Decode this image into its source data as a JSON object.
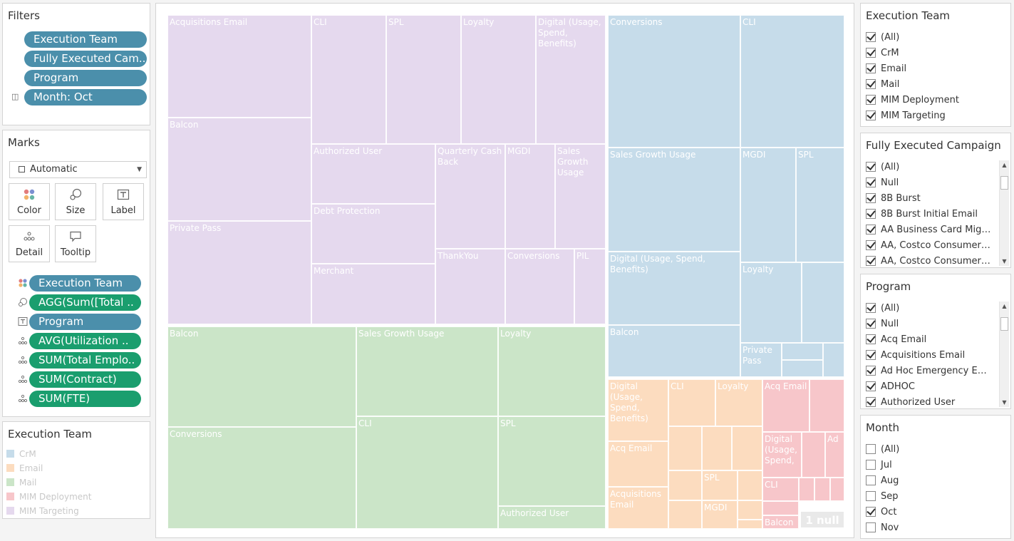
{
  "colors": {
    "crm": "#c6dcea",
    "email": "#fcdcbf",
    "mail": "#cbe5c8",
    "mim_deployment": "#f7c6ca",
    "mim_targeting": "#e5d9ee",
    "pill_blue": "#4b8fab",
    "pill_green": "#1a9e6e"
  },
  "filters": {
    "title": "Filters",
    "pills": [
      "Execution Team",
      "Fully Executed Cam..",
      "Program",
      "Month: Oct"
    ]
  },
  "marks": {
    "title": "Marks",
    "mark_type": "Automatic",
    "buttons": [
      {
        "label": "Color",
        "icon": "color-dots-icon"
      },
      {
        "label": "Size",
        "icon": "size-icon"
      },
      {
        "label": "Label",
        "icon": "label-icon"
      },
      {
        "label": "Detail",
        "icon": "detail-icon"
      },
      {
        "label": "Tooltip",
        "icon": "tooltip-icon"
      }
    ],
    "fields": [
      {
        "label": "Execution Team",
        "icon": "color-dots-icon",
        "kind": "dimension"
      },
      {
        "label": "AGG(Sum([Total ..",
        "icon": "size-icon",
        "kind": "measure"
      },
      {
        "label": "Program",
        "icon": "label-icon",
        "kind": "dimension"
      },
      {
        "label": "AVG(Utilization ..",
        "icon": "detail-icon",
        "kind": "measure"
      },
      {
        "label": "SUM(Total Emplo..",
        "icon": "detail-icon",
        "kind": "measure"
      },
      {
        "label": "SUM(Contract)",
        "icon": "detail-icon",
        "kind": "measure"
      },
      {
        "label": "SUM(FTE)",
        "icon": "detail-icon",
        "kind": "measure"
      }
    ]
  },
  "legend": {
    "title": "Execution Team",
    "items": [
      "CrM",
      "Email",
      "Mail",
      "MIM Deployment",
      "MIM Targeting"
    ]
  },
  "qf_execution_team": {
    "title": "Execution Team",
    "items": [
      {
        "label": "(All)",
        "checked": true
      },
      {
        "label": "CrM",
        "checked": true
      },
      {
        "label": "Email",
        "checked": true
      },
      {
        "label": "Mail",
        "checked": true
      },
      {
        "label": "MIM Deployment",
        "checked": true
      },
      {
        "label": "MIM Targeting",
        "checked": true
      }
    ]
  },
  "qf_campaign": {
    "title": "Fully Executed Campaign",
    "items": [
      {
        "label": "(All)",
        "checked": true
      },
      {
        "label": "Null",
        "checked": true
      },
      {
        "label": "8B Burst",
        "checked": true
      },
      {
        "label": "8B Burst Initial Email",
        "checked": true
      },
      {
        "label": "AA Business Card Migra...",
        "checked": true
      },
      {
        "label": "AA, Costco Consumer, ...",
        "checked": true
      },
      {
        "label": "AA, Costco Consumer, ...",
        "checked": true
      }
    ]
  },
  "qf_program": {
    "title": "Program",
    "items": [
      {
        "label": "(All)",
        "checked": true
      },
      {
        "label": "Null",
        "checked": true
      },
      {
        "label": "Acq Email",
        "checked": true
      },
      {
        "label": "Acquisitions Email",
        "checked": true
      },
      {
        "label": "Ad Hoc Emergency Emails",
        "checked": true
      },
      {
        "label": "ADHOC",
        "checked": true
      },
      {
        "label": "Authorized User",
        "checked": true
      }
    ]
  },
  "qf_month": {
    "title": "Month",
    "items": [
      {
        "label": "(All)",
        "checked": false
      },
      {
        "label": "Jul",
        "checked": false
      },
      {
        "label": "Aug",
        "checked": false
      },
      {
        "label": "Sep",
        "checked": false
      },
      {
        "label": "Oct",
        "checked": true
      },
      {
        "label": "Nov",
        "checked": false
      }
    ]
  },
  "treemap": {
    "null_badge": "1 null",
    "cells": [
      {
        "team": "mim_targeting",
        "label": "Acquisitions Email"
      },
      {
        "team": "mim_targeting",
        "label": "Balcon"
      },
      {
        "team": "mim_targeting",
        "label": "Private Pass"
      },
      {
        "team": "mim_targeting",
        "label": "CLI"
      },
      {
        "team": "mim_targeting",
        "label": "SPL"
      },
      {
        "team": "mim_targeting",
        "label": "Loyalty"
      },
      {
        "team": "mim_targeting",
        "label": "Digital (Usage, Spend, Benefits)"
      },
      {
        "team": "mim_targeting",
        "label": "Authorized User"
      },
      {
        "team": "mim_targeting",
        "label": "Debt Protection"
      },
      {
        "team": "mim_targeting",
        "label": "Merchant"
      },
      {
        "team": "mim_targeting",
        "label": "Quarterly Cash Back"
      },
      {
        "team": "mim_targeting",
        "label": "MGDI"
      },
      {
        "team": "mim_targeting",
        "label": "Sales Growth Usage"
      },
      {
        "team": "mim_targeting",
        "label": "ThankYou"
      },
      {
        "team": "mim_targeting",
        "label": "Conversions"
      },
      {
        "team": "mim_targeting",
        "label": "PIL"
      },
      {
        "team": "mail",
        "label": "Balcon"
      },
      {
        "team": "mail",
        "label": "Sales Growth Usage"
      },
      {
        "team": "mail",
        "label": "Loyalty"
      },
      {
        "team": "mail",
        "label": "Conversions"
      },
      {
        "team": "mail",
        "label": "CLI"
      },
      {
        "team": "mail",
        "label": "SPL"
      },
      {
        "team": "mail",
        "label": "Authorized User"
      },
      {
        "team": "crm",
        "label": "Conversions"
      },
      {
        "team": "crm",
        "label": "CLI"
      },
      {
        "team": "crm",
        "label": "Sales Growth Usage"
      },
      {
        "team": "crm",
        "label": "Digital (Usage, Spend, Benefits)"
      },
      {
        "team": "crm",
        "label": "Balcon"
      },
      {
        "team": "crm",
        "label": "MGDI"
      },
      {
        "team": "crm",
        "label": "SPL"
      },
      {
        "team": "crm",
        "label": "Loyalty"
      },
      {
        "team": "crm",
        "label": ""
      },
      {
        "team": "crm",
        "label": "Private Pass"
      },
      {
        "team": "crm",
        "label": ""
      },
      {
        "team": "crm",
        "label": ""
      },
      {
        "team": "crm",
        "label": ""
      },
      {
        "team": "email",
        "label": "Digital (Usage, Spend, Benefits)"
      },
      {
        "team": "email",
        "label": "Acq Email"
      },
      {
        "team": "email",
        "label": "Acquisitions Email"
      },
      {
        "team": "email",
        "label": "CLI"
      },
      {
        "team": "email",
        "label": "Loyalty"
      },
      {
        "team": "email",
        "label": ""
      },
      {
        "team": "email",
        "label": ""
      },
      {
        "team": "email",
        "label": ""
      },
      {
        "team": "email",
        "label": ""
      },
      {
        "team": "email",
        "label": "SPL"
      },
      {
        "team": "email",
        "label": ""
      },
      {
        "team": "email",
        "label": "MGDI"
      },
      {
        "team": "email",
        "label": ""
      },
      {
        "team": "email",
        "label": ""
      },
      {
        "team": "email",
        "label": ""
      },
      {
        "team": "mim_deployment",
        "label": "Acq Email"
      },
      {
        "team": "mim_deployment",
        "label": ""
      },
      {
        "team": "mim_deployment",
        "label": "Digital (Usage, Spend,"
      },
      {
        "team": "mim_deployment",
        "label": ""
      },
      {
        "team": "mim_deployment",
        "label": "Ad"
      },
      {
        "team": "mim_deployment",
        "label": "CLI"
      },
      {
        "team": "mim_deployment",
        "label": ""
      },
      {
        "team": "mim_deployment",
        "label": ""
      },
      {
        "team": "mim_deployment",
        "label": ""
      },
      {
        "team": "mim_deployment",
        "label": ""
      },
      {
        "team": "mim_deployment",
        "label": "Balcon"
      }
    ]
  }
}
